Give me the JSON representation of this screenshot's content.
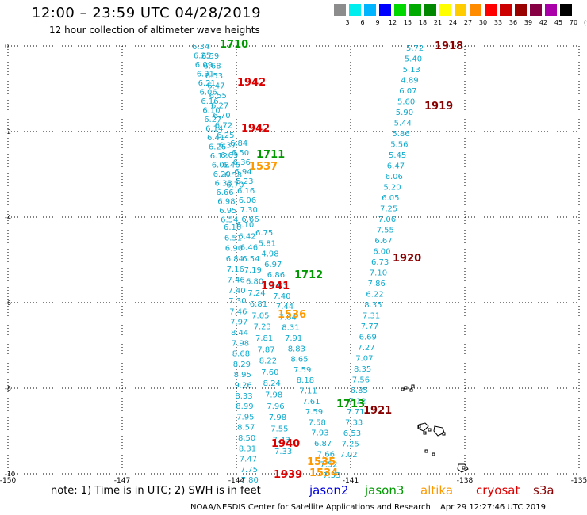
{
  "title": "12:00 – 23:59 UTC 04/28/2019",
  "subtitle": "12 hour collection of altimeter wave heights",
  "legend": {
    "colors": [
      "#8c8c8c",
      "#00eeee",
      "#00b4ff",
      "#0000ff",
      "#00d800",
      "#00aa00",
      "#008800",
      "#ffff00",
      "#ffcc00",
      "#ff8c00",
      "#ff0000",
      "#cc0000",
      "#990000",
      "#880044",
      "#aa00aa",
      "#000000"
    ],
    "labels": [
      "3",
      "6",
      "9",
      "12",
      "15",
      "18",
      "21",
      "24",
      "27",
      "30",
      "33",
      "36",
      "39",
      "42",
      "45",
      "70",
      "(ft)"
    ]
  },
  "axes": {
    "y_ticks": [
      "0",
      "-2",
      "-4",
      "-6",
      "-8",
      "-10"
    ],
    "x_ticks": [
      "-150",
      "-147",
      "-144",
      "-141",
      "-138",
      "-135"
    ]
  },
  "note": "note:  1) Time is in UTC; 2) SWH is in feet",
  "missions": [
    {
      "name": "jason2",
      "color": "#0000dd"
    },
    {
      "name": "jason3",
      "color": "#009900"
    },
    {
      "name": "altika",
      "color": "#ff9900"
    },
    {
      "name": "cryosat",
      "color": "#dd0000"
    },
    {
      "name": "s3a",
      "color": "#880000"
    }
  ],
  "footer": {
    "credit": "NOAA/NESDIS Center for Satellite Applications and Research",
    "timestamp": "Apr 29 12:27:46 UTC 2019"
  },
  "time_labels": [
    {
      "text": "1710",
      "color": "#009900"
    },
    {
      "text": "1942",
      "color": "#dd0000"
    },
    {
      "text": "1942",
      "color": "#dd0000"
    },
    {
      "text": "1711",
      "color": "#009900"
    },
    {
      "text": "1537",
      "color": "#ff9900"
    },
    {
      "text": "1712",
      "color": "#009900"
    },
    {
      "text": "1941",
      "color": "#dd0000"
    },
    {
      "text": "1536",
      "color": "#ff9900"
    },
    {
      "text": "1713",
      "color": "#009900"
    },
    {
      "text": "1940",
      "color": "#dd0000"
    },
    {
      "text": "1535",
      "color": "#ff9900"
    },
    {
      "text": "1534",
      "color": "#ff9900"
    },
    {
      "text": "1939",
      "color": "#dd0000"
    },
    {
      "text": "1918",
      "color": "#880000"
    },
    {
      "text": "1919",
      "color": "#880000"
    },
    {
      "text": "1920",
      "color": "#880000"
    },
    {
      "text": "1921",
      "color": "#880000"
    }
  ],
  "tracks": {
    "color": "#11aacc",
    "s3a": [
      "5.72",
      "5.40",
      "5.13",
      "4.89",
      "6.07",
      "5.60",
      "5.90",
      "5.44",
      "5.86",
      "5.56",
      "5.45",
      "6.47",
      "6.06",
      "5.20",
      "6.05",
      "7.25",
      "7.06",
      "7.55",
      "6.67",
      "6.00",
      "6.73",
      "7.10",
      "7.86",
      "6.22",
      "8.35",
      "7.31",
      "7.77",
      "6.69",
      "7.27",
      "7.07",
      "8.35",
      "7.56",
      "6.85",
      "7.12",
      "7.71",
      "7.33",
      "6.53",
      "7.25",
      "7.02"
    ],
    "cryosat_left": [
      "6.16",
      "6.51",
      "6.90",
      "6.84",
      "7.16",
      "7.46",
      "7.40",
      "7.30",
      "7.46",
      "7.97",
      "8.44",
      "7.98",
      "8.68",
      "8.29",
      "8.95",
      "9.26",
      "8.33",
      "8.99",
      "7.95",
      "8.57",
      "8.50",
      "8.31",
      "7.47",
      "7.75",
      "7.80"
    ],
    "cryosat_mid": [
      "6.75",
      "5.81",
      "4.98",
      "6.97",
      "6.86",
      "7.03",
      "7.40",
      "7.44",
      "7.84",
      "8.31",
      "7.91",
      "8.83",
      "8.65",
      "7.59",
      "8.18",
      "7.11",
      "7.61",
      "7.59",
      "7.58",
      "7.93",
      "6.87",
      "7.66",
      "7.52",
      "7.33"
    ],
    "mid_inner": [
      "6.10",
      "6.42",
      "6.46",
      "6.54",
      "7.19",
      "6.80",
      "7.24",
      "6.81",
      "7.05",
      "7.23",
      "7.81",
      "7.87",
      "8.22",
      "7.60",
      "8.24",
      "7.98",
      "7.96",
      "7.98",
      "7.55",
      "7.43",
      "7.33"
    ],
    "dense_col1": [
      "6.34",
      "6.25",
      "6.09",
      "6.31",
      "6.21",
      "6.06",
      "6.16",
      "6.10",
      "6.27",
      "6.14",
      "6.41",
      "6.26",
      "6.12",
      "6.08",
      "6.20",
      "6.33",
      "6.66",
      "6.98",
      "6.95",
      "6.54"
    ],
    "dense_col2": [
      "6.59",
      "6.68",
      "6.53",
      "6.47",
      "6.55",
      "6.27",
      "6.70",
      "6.72",
      "6.25",
      "6.37",
      "6.69",
      "6.46",
      "6.58",
      "6.70"
    ],
    "dense_col3": [
      "6.84",
      "6.50",
      "6.36",
      "6.94",
      "5.23",
      "6.16",
      "6.06",
      "7.30",
      "6.66"
    ]
  }
}
